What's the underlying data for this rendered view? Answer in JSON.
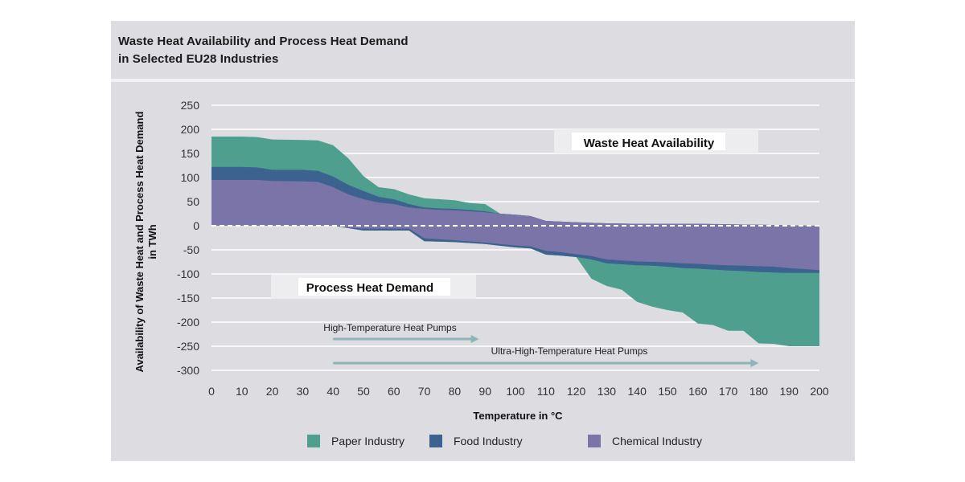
{
  "title": {
    "line1": "Waste Heat Availability and Process Heat Demand",
    "line2": "in Selected EU28 Industries"
  },
  "colors": {
    "paper": "#4f9f8f",
    "food": "#3c6390",
    "chemical": "#7a74a8",
    "arrow": "#8db4b8",
    "grid": "#ffffff",
    "panel": "#dcdce1"
  },
  "chart_data": {
    "type": "area",
    "xlabel": "Temperature in °C",
    "ylabel_line1": "Availability of Waste Heat and Process Heat Demand",
    "ylabel_line2": "in TWh",
    "xlim": [
      0,
      200
    ],
    "ylim": [
      -300,
      250
    ],
    "xticks": [
      0,
      10,
      20,
      30,
      40,
      50,
      60,
      70,
      80,
      90,
      100,
      110,
      120,
      130,
      140,
      150,
      160,
      170,
      180,
      190,
      200
    ],
    "yticks": [
      250,
      200,
      150,
      100,
      50,
      0,
      -50,
      -100,
      -150,
      -200,
      -250,
      -300
    ],
    "grid": "horizontal",
    "stacking": "cumulative (Chemical innermost, Food middle, Paper outermost)",
    "availability": {
      "x": [
        0,
        10,
        15,
        20,
        30,
        35,
        40,
        45,
        50,
        55,
        60,
        65,
        70,
        75,
        80,
        85,
        90,
        95,
        100,
        105,
        110,
        120,
        130,
        140,
        150,
        160,
        170,
        180,
        190,
        200
      ],
      "chemical": [
        95,
        95,
        95,
        93,
        92,
        91,
        80,
        65,
        55,
        48,
        45,
        38,
        35,
        33,
        32,
        30,
        28,
        25,
        23,
        20,
        10,
        7,
        5,
        4,
        4,
        4,
        3,
        2,
        1,
        0
      ],
      "food": [
        122,
        122,
        121,
        116,
        116,
        114,
        102,
        85,
        72,
        60,
        55,
        45,
        38,
        36,
        35,
        33,
        30,
        25,
        23,
        20,
        10,
        7,
        5,
        4,
        4,
        4,
        3,
        2,
        1,
        0
      ],
      "paper": [
        185,
        185,
        184,
        179,
        178,
        177,
        167,
        140,
        103,
        80,
        76,
        65,
        57,
        55,
        53,
        47,
        45,
        25,
        23,
        20,
        10,
        7,
        5,
        4,
        4,
        4,
        3,
        2,
        1,
        0
      ]
    },
    "demand": {
      "x": [
        0,
        40,
        43,
        45,
        50,
        55,
        60,
        65,
        70,
        80,
        90,
        100,
        105,
        110,
        115,
        120,
        125,
        130,
        135,
        140,
        145,
        150,
        155,
        160,
        165,
        170,
        175,
        180,
        185,
        190,
        195,
        200
      ],
      "chemical": [
        0,
        0,
        -2,
        -4,
        -6,
        -6,
        -6,
        -6,
        -26,
        -30,
        -35,
        -41,
        -43,
        -52,
        -55,
        -59,
        -63,
        -70,
        -72,
        -74,
        -75,
        -76,
        -78,
        -79,
        -81,
        -82,
        -83,
        -84,
        -85,
        -88,
        -90,
        -92
      ],
      "food": [
        0,
        0,
        -3,
        -5,
        -10,
        -10,
        -10,
        -10,
        -32,
        -34,
        -38,
        -45,
        -47,
        -60,
        -62,
        -65,
        -70,
        -78,
        -80,
        -82,
        -83,
        -85,
        -88,
        -89,
        -91,
        -93,
        -94,
        -96,
        -97,
        -98,
        -98,
        -98
      ],
      "paper": [
        0,
        0,
        -3,
        -5,
        -10,
        -10,
        -10,
        -10,
        -32,
        -34,
        -38,
        -45,
        -47,
        -60,
        -62,
        -65,
        -110,
        -125,
        -133,
        -158,
        -168,
        -175,
        -180,
        -203,
        -206,
        -218,
        -218,
        -244,
        -245,
        -250,
        -250,
        -250
      ]
    },
    "annotations": {
      "availability_label": "Waste Heat Availability",
      "demand_label": "Process Heat Demand",
      "htp_label": "High-Temperature Heat Pumps",
      "htp_range": [
        40,
        88
      ],
      "uhtp_label": "Ultra-High-Temperature Heat Pumps",
      "uhtp_range": [
        40,
        180
      ]
    },
    "legend": {
      "placement": "bottom",
      "entries": [
        {
          "key": "paper",
          "label": "Paper Industry"
        },
        {
          "key": "food",
          "label": "Food Industry"
        },
        {
          "key": "chemical",
          "label": "Chemical Industry"
        }
      ]
    }
  }
}
